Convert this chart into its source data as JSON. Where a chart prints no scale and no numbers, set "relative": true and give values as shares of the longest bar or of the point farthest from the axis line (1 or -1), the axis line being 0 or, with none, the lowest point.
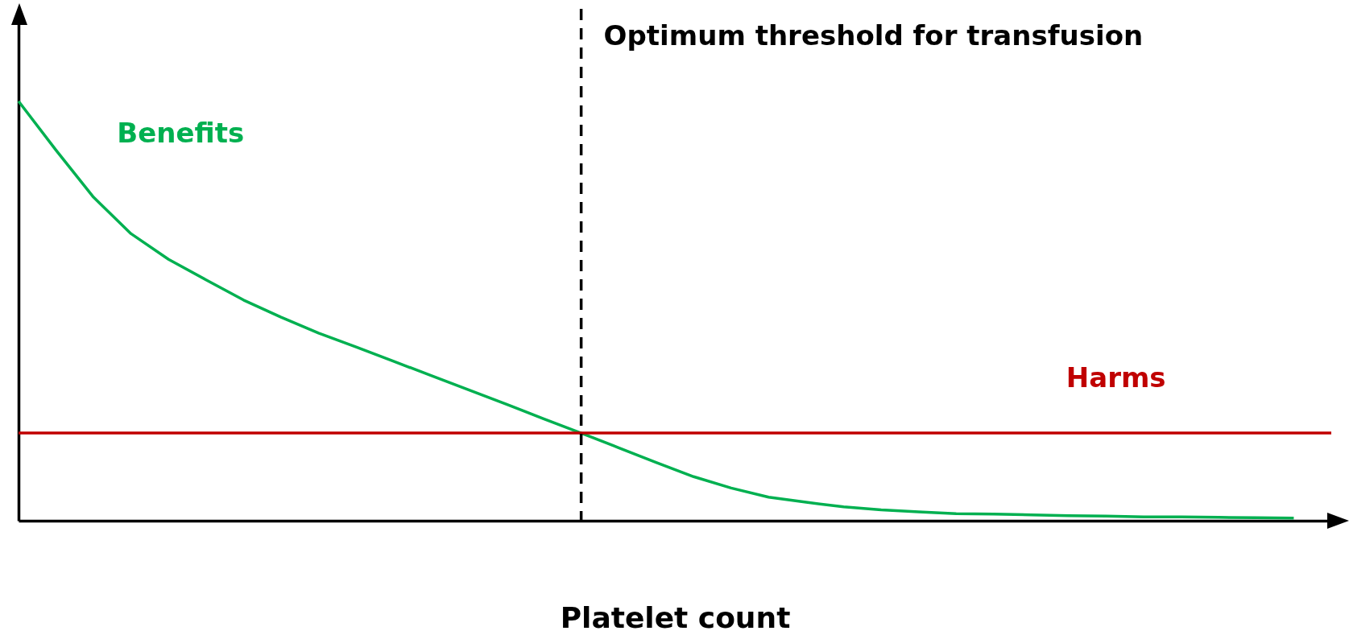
{
  "chart_data": {
    "type": "line",
    "relative": true,
    "xlabel": "Platelet count",
    "legend": false,
    "categories": [
      null,
      null,
      null,
      null,
      null,
      null,
      null,
      null,
      null,
      null,
      null,
      null,
      null,
      null,
      null,
      null,
      null,
      null,
      null,
      null,
      null,
      null,
      null,
      null,
      null,
      null,
      null,
      null,
      null,
      null,
      null,
      null,
      null,
      null,
      null,
      null
    ],
    "series": [
      {
        "name": "Benefits",
        "color": "#00b050",
        "values": [
          1.0,
          0.883,
          0.771,
          0.684,
          0.623,
          0.574,
          0.526,
          0.485,
          0.447,
          0.414,
          0.38,
          0.346,
          0.312,
          0.278,
          0.243,
          0.209,
          0.174,
          0.139,
          0.105,
          0.078,
          0.056,
          0.044,
          0.033,
          0.026,
          0.021,
          0.017,
          0.016,
          0.014,
          0.012,
          0.011,
          0.009,
          0.009,
          0.008,
          0.007,
          0.006,
          null
        ]
      },
      {
        "name": "Harms",
        "color": "#c00000",
        "values": [
          0.209,
          0.209,
          0.209,
          0.209,
          0.209,
          0.209,
          0.209,
          0.209,
          0.209,
          0.209,
          0.209,
          0.209,
          0.209,
          0.209,
          0.209,
          0.209,
          0.209,
          0.209,
          0.209,
          0.209,
          0.209,
          0.209,
          0.209,
          0.209,
          0.209,
          0.209,
          0.209,
          0.209,
          0.209,
          0.209,
          0.209,
          0.209,
          0.209,
          0.209,
          0.209,
          0.209
        ]
      }
    ],
    "annotations": [
      "Optimum threshold for transfusion"
    ]
  }
}
